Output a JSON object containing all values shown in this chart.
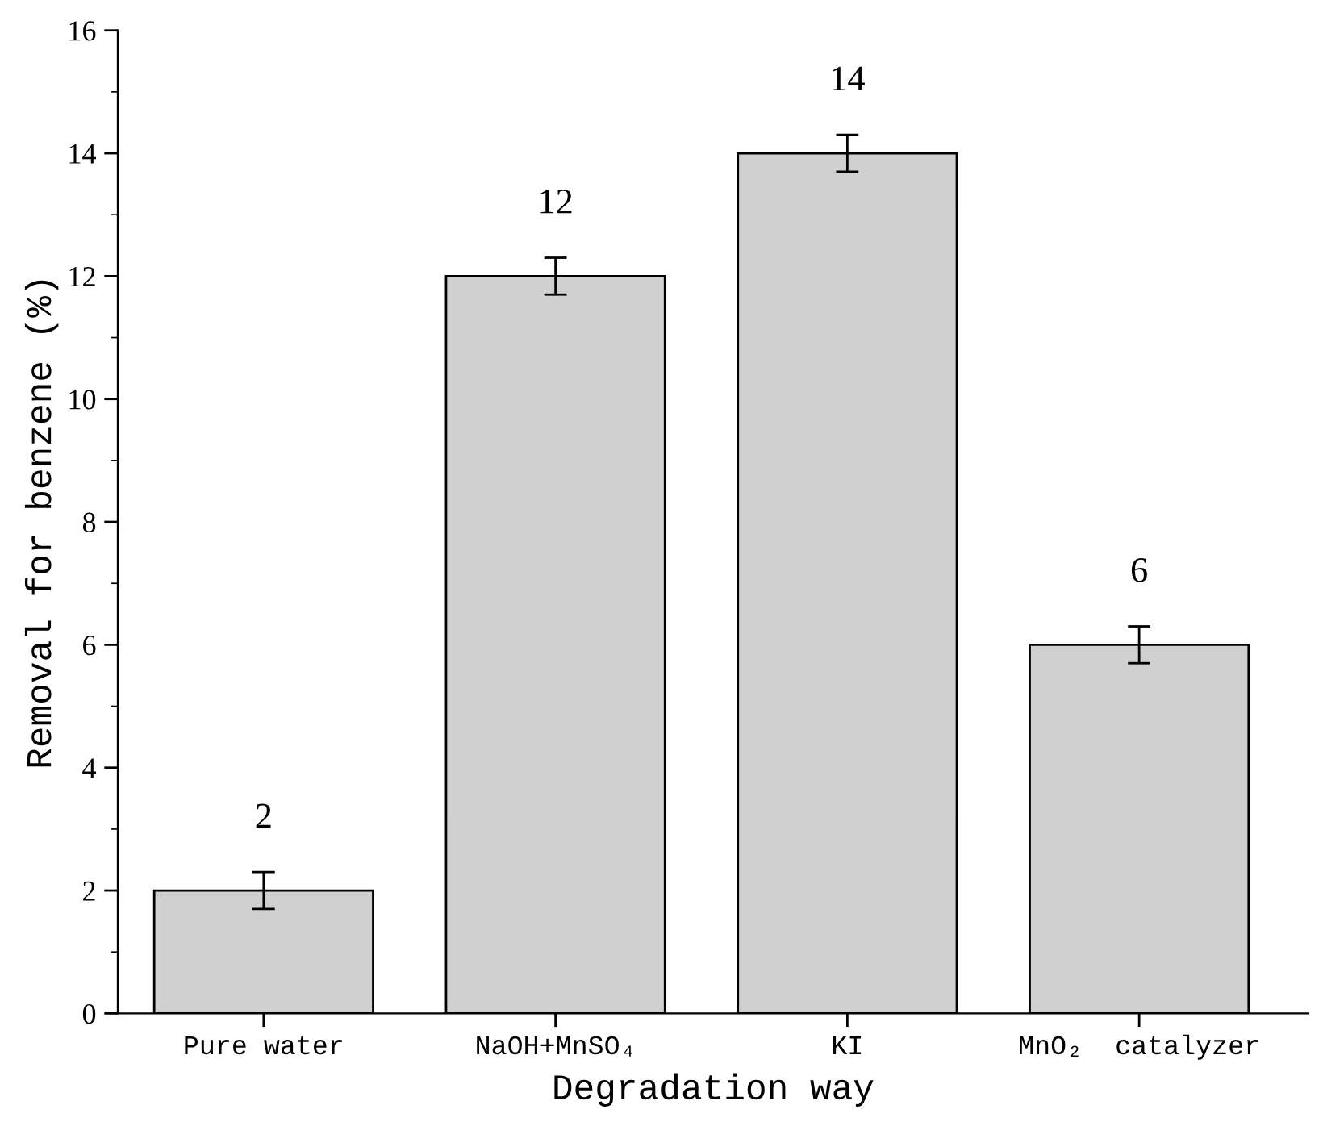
{
  "chart_data": {
    "type": "bar",
    "xlabel": "Degradation way",
    "ylabel": "Removal for benzene (%)",
    "categories": [
      "Pure water",
      "NaOH+MnSO₄",
      "KI",
      "MnO₂  catalyzer"
    ],
    "values": [
      2,
      12,
      14,
      6
    ],
    "errors": [
      0.3,
      0.3,
      0.3,
      0.3
    ],
    "color": "#d0d0d0",
    "ylim": [
      0,
      16
    ],
    "yticks": [
      0,
      2,
      4,
      6,
      8,
      10,
      12,
      14,
      16
    ],
    "data_labels": true,
    "grid": false,
    "legend": false
  }
}
